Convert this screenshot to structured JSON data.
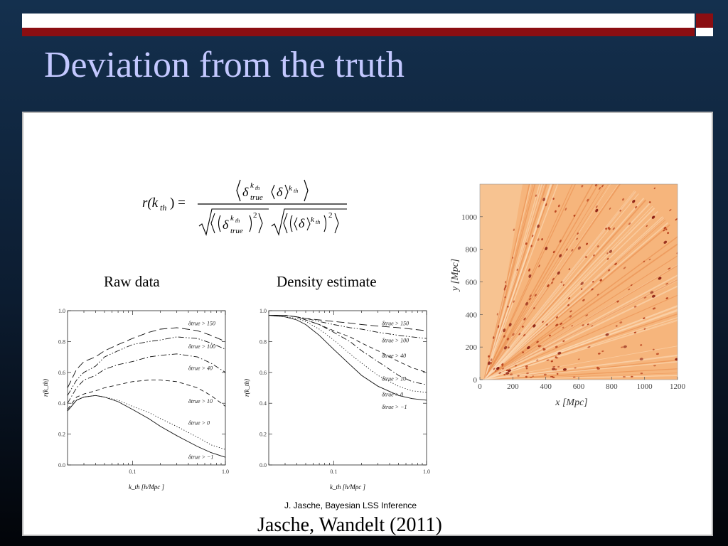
{
  "slide": {
    "title": "Deviation from the truth",
    "citation_small": "J. Jasche, Bayesian LSS Inference",
    "citation_main": "Jasche, Wandelt (2011)"
  },
  "colors": {
    "title": "#c3c8ff",
    "bar_red": "#8b0e12",
    "map_base": "#f6b57c",
    "map_dark": "#8a1c10"
  },
  "formula": {
    "lhs": "r(k",
    "lhs_sub": "th",
    "lhs_close": ") =",
    "num_delta": "δ",
    "num_sup": "k",
    "num_sup_sub": "th",
    "num_sub": "true",
    "den_pow": "2"
  },
  "chart_data": [
    {
      "type": "line",
      "title": "Raw data",
      "xlabel": "k_th [h/Mpc ]",
      "ylabel": "r(k_th)",
      "xscale": "log",
      "xlim": [
        0.02,
        1.0
      ],
      "ylim": [
        0.0,
        1.0
      ],
      "xticks": [
        0.1,
        1.0
      ],
      "xtick_labels": [
        "0.1",
        "1.0"
      ],
      "yticks": [
        0.0,
        0.2,
        0.4,
        0.6,
        0.8,
        1.0
      ],
      "ytick_labels": [
        "0.0",
        "0.2",
        "0.4",
        "0.6",
        "0.8",
        "1.0"
      ],
      "series": [
        {
          "name": "δtrue > 150",
          "style": "longdash",
          "x": [
            0.02,
            0.025,
            0.03,
            0.04,
            0.05,
            0.07,
            0.1,
            0.15,
            0.2,
            0.3,
            0.5,
            0.7,
            1.0
          ],
          "y": [
            0.5,
            0.62,
            0.67,
            0.7,
            0.74,
            0.78,
            0.82,
            0.86,
            0.88,
            0.89,
            0.87,
            0.84,
            0.8
          ]
        },
        {
          "name": "δtrue > 100",
          "style": "dashdotdot",
          "x": [
            0.02,
            0.025,
            0.03,
            0.04,
            0.05,
            0.07,
            0.1,
            0.15,
            0.2,
            0.3,
            0.5,
            0.7,
            1.0
          ],
          "y": [
            0.45,
            0.55,
            0.6,
            0.64,
            0.7,
            0.74,
            0.78,
            0.8,
            0.81,
            0.83,
            0.82,
            0.79,
            0.75
          ]
        },
        {
          "name": "δtrue > 40",
          "style": "dashdot",
          "x": [
            0.02,
            0.025,
            0.03,
            0.04,
            0.05,
            0.07,
            0.1,
            0.15,
            0.2,
            0.3,
            0.5,
            0.7,
            1.0
          ],
          "y": [
            0.4,
            0.5,
            0.55,
            0.58,
            0.62,
            0.65,
            0.67,
            0.7,
            0.71,
            0.72,
            0.7,
            0.66,
            0.6
          ]
        },
        {
          "name": "δtrue > 10",
          "style": "dash",
          "x": [
            0.02,
            0.025,
            0.03,
            0.04,
            0.05,
            0.07,
            0.1,
            0.15,
            0.2,
            0.3,
            0.5,
            0.7,
            1.0
          ],
          "y": [
            0.36,
            0.44,
            0.46,
            0.48,
            0.5,
            0.52,
            0.54,
            0.55,
            0.55,
            0.54,
            0.5,
            0.45,
            0.38
          ]
        },
        {
          "name": "δtrue > 0",
          "style": "dot",
          "x": [
            0.02,
            0.025,
            0.03,
            0.04,
            0.05,
            0.07,
            0.1,
            0.15,
            0.2,
            0.3,
            0.5,
            0.7,
            1.0
          ],
          "y": [
            0.35,
            0.42,
            0.44,
            0.45,
            0.44,
            0.42,
            0.38,
            0.34,
            0.3,
            0.25,
            0.18,
            0.13,
            0.1
          ]
        },
        {
          "name": "δtrue > −1",
          "style": "solid",
          "x": [
            0.02,
            0.025,
            0.03,
            0.04,
            0.05,
            0.07,
            0.1,
            0.15,
            0.2,
            0.3,
            0.5,
            0.7,
            1.0
          ],
          "y": [
            0.35,
            0.42,
            0.44,
            0.45,
            0.44,
            0.41,
            0.36,
            0.3,
            0.25,
            0.19,
            0.12,
            0.08,
            0.05
          ]
        }
      ]
    },
    {
      "type": "line",
      "title": "Density estimate",
      "xlabel": "k_th [h/Mpc ]",
      "ylabel": "r(k_th)",
      "xscale": "log",
      "xlim": [
        0.02,
        1.0
      ],
      "ylim": [
        0.0,
        1.0
      ],
      "xticks": [
        0.1,
        1.0
      ],
      "xtick_labels": [
        "0.1",
        "1.0"
      ],
      "yticks": [
        0.0,
        0.2,
        0.4,
        0.6,
        0.8,
        1.0
      ],
      "ytick_labels": [
        "0.0",
        "0.2",
        "0.4",
        "0.6",
        "0.8",
        "1.0"
      ],
      "series": [
        {
          "name": "δtrue > 150",
          "style": "longdash",
          "x": [
            0.02,
            0.03,
            0.04,
            0.05,
            0.07,
            0.1,
            0.15,
            0.2,
            0.3,
            0.5,
            0.7,
            1.0
          ],
          "y": [
            0.97,
            0.97,
            0.96,
            0.95,
            0.94,
            0.93,
            0.92,
            0.91,
            0.9,
            0.89,
            0.88,
            0.87
          ]
        },
        {
          "name": "δtrue > 100",
          "style": "dashdotdot",
          "x": [
            0.02,
            0.03,
            0.04,
            0.05,
            0.07,
            0.1,
            0.15,
            0.2,
            0.3,
            0.5,
            0.7,
            1.0
          ],
          "y": [
            0.97,
            0.97,
            0.96,
            0.95,
            0.93,
            0.91,
            0.89,
            0.88,
            0.86,
            0.84,
            0.83,
            0.82
          ]
        },
        {
          "name": "δtrue > 40",
          "style": "dash",
          "x": [
            0.02,
            0.03,
            0.04,
            0.05,
            0.07,
            0.1,
            0.15,
            0.2,
            0.3,
            0.5,
            0.7,
            1.0
          ],
          "y": [
            0.97,
            0.97,
            0.96,
            0.94,
            0.91,
            0.87,
            0.83,
            0.79,
            0.74,
            0.67,
            0.63,
            0.6
          ]
        },
        {
          "name": "δtrue > 10",
          "style": "dashdot",
          "x": [
            0.02,
            0.03,
            0.04,
            0.05,
            0.07,
            0.1,
            0.15,
            0.2,
            0.3,
            0.5,
            0.7,
            1.0
          ],
          "y": [
            0.97,
            0.97,
            0.96,
            0.94,
            0.91,
            0.86,
            0.8,
            0.74,
            0.67,
            0.58,
            0.54,
            0.52
          ]
        },
        {
          "name": "δtrue > 0",
          "style": "dot",
          "x": [
            0.02,
            0.03,
            0.04,
            0.05,
            0.07,
            0.1,
            0.15,
            0.2,
            0.3,
            0.5,
            0.7,
            1.0
          ],
          "y": [
            0.97,
            0.96,
            0.95,
            0.93,
            0.88,
            0.81,
            0.72,
            0.66,
            0.58,
            0.51,
            0.48,
            0.47
          ]
        },
        {
          "name": "δtrue > −1",
          "style": "solid",
          "x": [
            0.02,
            0.03,
            0.04,
            0.05,
            0.07,
            0.1,
            0.15,
            0.2,
            0.3,
            0.5,
            0.7,
            1.0
          ],
          "y": [
            0.97,
            0.96,
            0.94,
            0.91,
            0.84,
            0.75,
            0.65,
            0.58,
            0.51,
            0.45,
            0.43,
            0.42
          ]
        }
      ]
    },
    {
      "type": "heatmap",
      "title": "",
      "xlabel": "x [Mpc]",
      "ylabel": "y [Mpc]",
      "xlim": [
        0,
        1200
      ],
      "ylim": [
        0,
        1200
      ],
      "xticks": [
        0,
        200,
        400,
        600,
        800,
        1000,
        1200
      ],
      "xtick_labels": [
        "0",
        "200",
        "400",
        "600",
        "800",
        "1000",
        "1200"
      ],
      "yticks": [
        0,
        200,
        400,
        600,
        800,
        1000
      ],
      "ytick_labels": [
        "0",
        "200",
        "400",
        "600",
        "800",
        "1000"
      ]
    }
  ]
}
